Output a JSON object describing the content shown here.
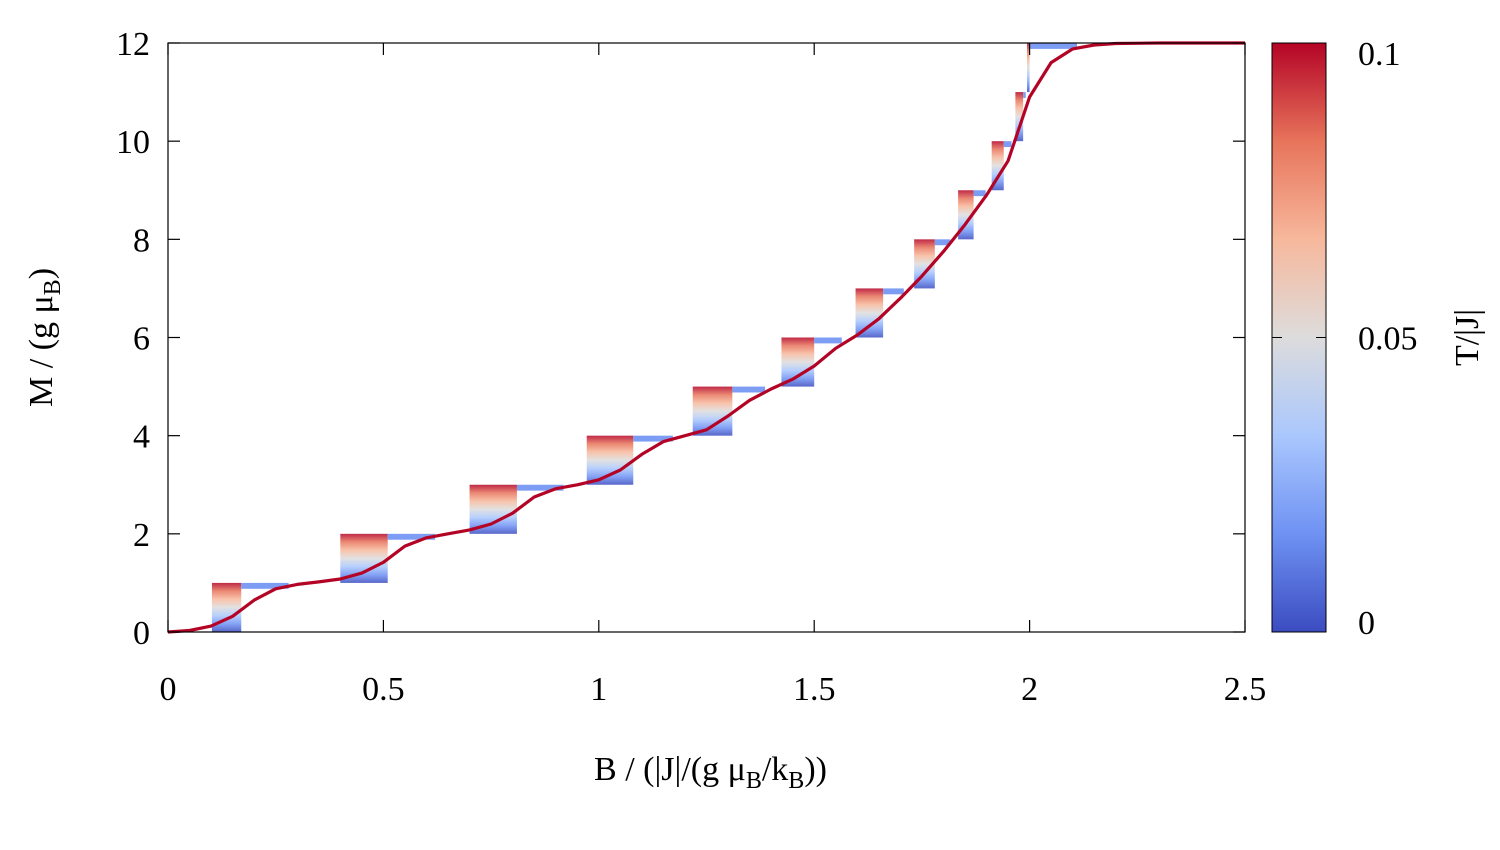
{
  "chart_data": {
    "type": "line",
    "xlabel": {
      "main": "B  / (|J|/(g μ",
      "sub1": "B",
      "mid": "/k",
      "sub2": "B",
      "end": "))"
    },
    "ylabel": {
      "main": "M / (g μ",
      "sub": "B",
      "end": ")"
    },
    "xlim": [
      0,
      2.5
    ],
    "ylim": [
      0,
      12
    ],
    "x_ticks": [
      "0",
      "0.5",
      "1",
      "1.5",
      "2",
      "2.5"
    ],
    "x_tick_values": [
      0,
      0.5,
      1,
      1.5,
      2,
      2.5
    ],
    "y_ticks": [
      "0",
      "2",
      "4",
      "6",
      "8",
      "10",
      "12"
    ],
    "y_tick_values": [
      0,
      2,
      4,
      6,
      8,
      10,
      12
    ],
    "colorbar": {
      "label": "T/|J|",
      "range": [
        0,
        0.1
      ],
      "ticks": [
        "0",
        "0.05",
        "0.1"
      ],
      "tick_values": [
        0,
        0.05,
        0.1
      ],
      "colors": [
        "#3b4cc0",
        "#6f92f3",
        "#aac7fd",
        "#dddcdc",
        "#f7b89c",
        "#e7745b",
        "#b40426"
      ]
    },
    "step_fields": [
      0.17,
      0.51,
      0.81,
      1.08,
      1.31,
      1.5,
      1.66,
      1.78,
      1.87,
      1.94,
      1.985,
      2.0
    ],
    "series": [
      {
        "T": 0.1,
        "x": [
          0,
          0.05,
          0.1,
          0.15,
          0.2,
          0.25,
          0.3,
          0.35,
          0.4,
          0.45,
          0.5,
          0.55,
          0.6,
          0.65,
          0.7,
          0.75,
          0.8,
          0.85,
          0.9,
          0.95,
          1.0,
          1.05,
          1.1,
          1.15,
          1.2,
          1.25,
          1.3,
          1.35,
          1.4,
          1.45,
          1.5,
          1.55,
          1.6,
          1.65,
          1.7,
          1.75,
          1.8,
          1.85,
          1.9,
          1.95,
          2.0,
          2.05,
          2.1,
          2.15,
          2.2,
          2.3,
          2.4,
          2.5
        ],
        "y": [
          0,
          0.03,
          0.12,
          0.32,
          0.65,
          0.88,
          0.97,
          1.02,
          1.08,
          1.2,
          1.42,
          1.75,
          1.92,
          2.0,
          2.08,
          2.2,
          2.42,
          2.75,
          2.92,
          3.0,
          3.1,
          3.3,
          3.62,
          3.88,
          4.0,
          4.12,
          4.4,
          4.72,
          4.95,
          5.15,
          5.42,
          5.78,
          6.05,
          6.38,
          6.8,
          7.25,
          7.75,
          8.3,
          8.9,
          9.6,
          10.9,
          11.6,
          11.88,
          11.96,
          11.99,
          12.0,
          12.0,
          12.0
        ]
      }
    ]
  }
}
